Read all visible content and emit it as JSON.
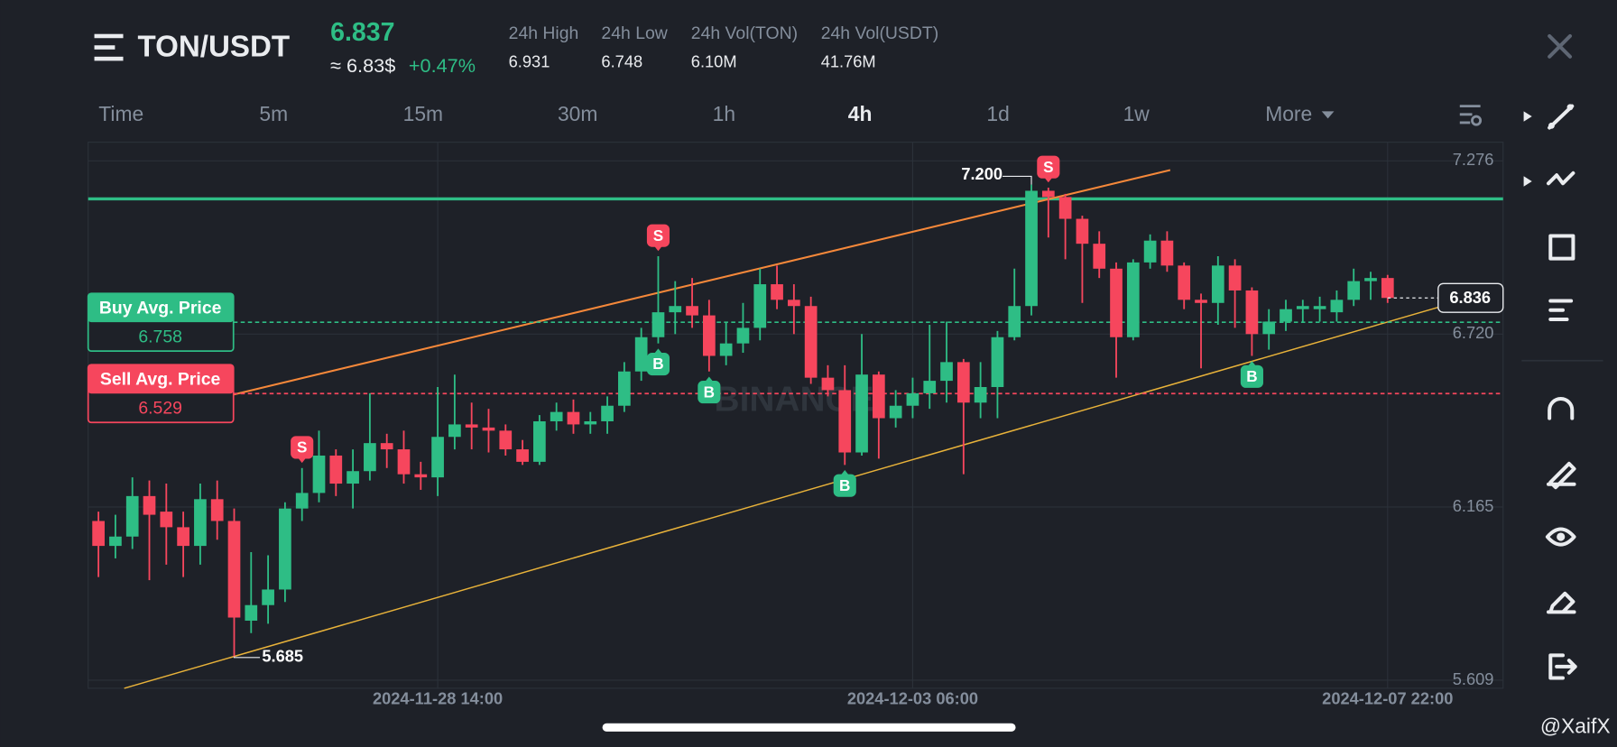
{
  "header": {
    "menu_pair": "TON/USDT",
    "price": "6.837",
    "fiat_price": "≈ 6.83$",
    "change": "+0.47%",
    "stats": [
      {
        "label": "24h High",
        "value": "6.931"
      },
      {
        "label": "24h Low",
        "value": "6.748"
      },
      {
        "label": "24h Vol(TON)",
        "value": "6.10M"
      },
      {
        "label": "24h Vol(USDT)",
        "value": "41.76M"
      }
    ]
  },
  "tabs": [
    "Time",
    "5m",
    "15m",
    "30m",
    "1h",
    "4h",
    "1d",
    "1w",
    "More"
  ],
  "active_tab": "4h",
  "watermark": "BINANCE",
  "credit": "@XaifX",
  "chart_data": {
    "type": "candlestick",
    "categories": [
      null,
      null,
      null,
      null,
      null,
      null,
      null,
      null,
      null,
      null,
      null,
      null,
      null,
      null,
      null,
      null,
      null,
      null,
      null,
      null,
      "2024-11-28 14:00",
      null,
      null,
      null,
      null,
      null,
      null,
      null,
      null,
      null,
      null,
      null,
      null,
      null,
      null,
      null,
      null,
      null,
      null,
      null,
      null,
      null,
      null,
      null,
      null,
      null,
      null,
      null,
      "2024-12-03 06:00",
      null,
      null,
      null,
      null,
      null,
      null,
      null,
      null,
      null,
      null,
      null,
      null,
      null,
      null,
      null,
      null,
      null,
      null,
      null,
      null,
      null,
      null,
      null,
      null,
      null,
      null,
      null,
      "2024-12-07 22:00"
    ],
    "open": [
      6.12,
      6.04,
      6.07,
      6.2,
      6.15,
      6.1,
      6.04,
      6.19,
      6.12,
      5.8,
      5.85,
      5.9,
      6.16,
      6.21,
      6.33,
      6.24,
      6.28,
      6.37,
      6.35,
      6.27,
      6.26,
      6.39,
      6.43,
      6.42,
      6.41,
      6.35,
      6.31,
      6.44,
      6.47,
      6.43,
      6.44,
      6.49,
      6.6,
      6.71,
      6.79,
      6.81,
      6.78,
      6.65,
      6.69,
      6.74,
      6.88,
      6.83,
      6.81,
      6.58,
      6.54,
      6.34,
      6.59,
      6.45,
      6.49,
      6.53,
      6.57,
      6.63,
      6.5,
      6.55,
      6.71,
      6.81,
      7.18,
      7.16,
      7.09,
      7.01,
      6.93,
      6.71,
      6.95,
      7.02,
      6.94,
      6.83,
      6.82,
      6.94,
      6.86,
      6.72,
      6.76,
      6.8,
      6.8,
      6.79,
      6.83,
      6.89,
      6.9
    ],
    "high": [
      6.15,
      6.14,
      6.26,
      6.25,
      6.24,
      6.15,
      6.24,
      6.25,
      6.16,
      6.02,
      6.01,
      6.18,
      6.29,
      6.41,
      6.35,
      6.35,
      6.53,
      6.4,
      6.41,
      6.31,
      6.55,
      6.59,
      6.5,
      6.48,
      6.43,
      6.38,
      6.46,
      6.5,
      6.51,
      6.47,
      6.52,
      6.63,
      6.74,
      6.97,
      6.89,
      6.9,
      6.83,
      6.76,
      6.82,
      6.93,
      6.94,
      6.88,
      6.84,
      6.62,
      6.62,
      6.72,
      6.6,
      6.54,
      6.58,
      6.75,
      6.76,
      6.64,
      6.63,
      6.73,
      6.93,
      7.2,
      7.19,
      7.17,
      7.1,
      7.05,
      6.95,
      6.96,
      7.04,
      7.05,
      6.95,
      6.85,
      6.97,
      6.96,
      6.87,
      6.8,
      6.83,
      6.83,
      6.84,
      6.86,
      6.93,
      6.92,
      6.91
    ],
    "low": [
      5.94,
      6.0,
      6.03,
      5.93,
      5.98,
      5.94,
      5.98,
      6.06,
      5.685,
      5.76,
      5.79,
      5.86,
      6.12,
      6.18,
      6.2,
      6.16,
      6.25,
      6.29,
      6.24,
      6.22,
      6.2,
      6.35,
      6.35,
      6.34,
      6.33,
      6.3,
      6.3,
      6.41,
      6.4,
      6.4,
      6.4,
      6.47,
      6.57,
      6.69,
      6.72,
      6.74,
      6.6,
      6.62,
      6.66,
      6.7,
      6.8,
      6.72,
      6.56,
      6.52,
      6.3,
      6.33,
      6.32,
      6.42,
      6.45,
      6.48,
      6.5,
      6.27,
      6.45,
      6.45,
      6.7,
      6.78,
      7.03,
      6.96,
      6.82,
      6.9,
      6.58,
      6.7,
      6.93,
      6.92,
      6.8,
      6.61,
      6.75,
      6.74,
      6.65,
      6.67,
      6.73,
      6.76,
      6.76,
      6.76,
      6.81,
      6.83,
      6.82
    ],
    "close": [
      6.04,
      6.07,
      6.2,
      6.14,
      6.1,
      6.04,
      6.19,
      6.12,
      5.81,
      5.85,
      5.9,
      6.16,
      6.21,
      6.33,
      6.24,
      6.28,
      6.37,
      6.35,
      6.27,
      6.26,
      6.39,
      6.43,
      6.42,
      6.41,
      6.35,
      6.31,
      6.44,
      6.47,
      6.43,
      6.44,
      6.49,
      6.6,
      6.71,
      6.79,
      6.81,
      6.78,
      6.65,
      6.69,
      6.74,
      6.88,
      6.83,
      6.81,
      6.58,
      6.54,
      6.34,
      6.59,
      6.45,
      6.49,
      6.53,
      6.57,
      6.63,
      6.5,
      6.55,
      6.71,
      6.81,
      7.18,
      7.16,
      7.09,
      7.01,
      6.93,
      6.71,
      6.95,
      7.02,
      6.94,
      6.83,
      6.82,
      6.94,
      6.86,
      6.72,
      6.76,
      6.8,
      6.81,
      6.81,
      6.83,
      6.89,
      6.9,
      6.836
    ],
    "up_color": "#2ebd85",
    "down_color": "#f6465d",
    "ylim": [
      5.583,
      7.336
    ],
    "yticks": [
      7.276,
      {
        "value": 6.72,
        "label": "6.720"
      },
      6.165,
      5.609
    ],
    "grid": true,
    "last_price": 6.836,
    "extreme_labels": [
      {
        "value": 7.2,
        "label": "7.200",
        "at": 55
      },
      {
        "value": 5.685,
        "label": "5.685",
        "at": 8
      }
    ],
    "avg_lines": [
      {
        "name": "Buy Avg. Price",
        "value": 6.758,
        "color": "#2ebd85"
      },
      {
        "name": "Sell Avg. Price",
        "value": 6.529,
        "color": "#f6465d"
      }
    ],
    "trades": [
      {
        "label": "S",
        "at": 12
      },
      {
        "label": "S",
        "at": 33
      },
      {
        "label": "B",
        "at": 33
      },
      {
        "label": "B",
        "at": 36
      },
      {
        "label": "B",
        "at": 44
      },
      {
        "label": "S",
        "at": 56
      },
      {
        "label": "B",
        "at": 68
      }
    ]
  }
}
